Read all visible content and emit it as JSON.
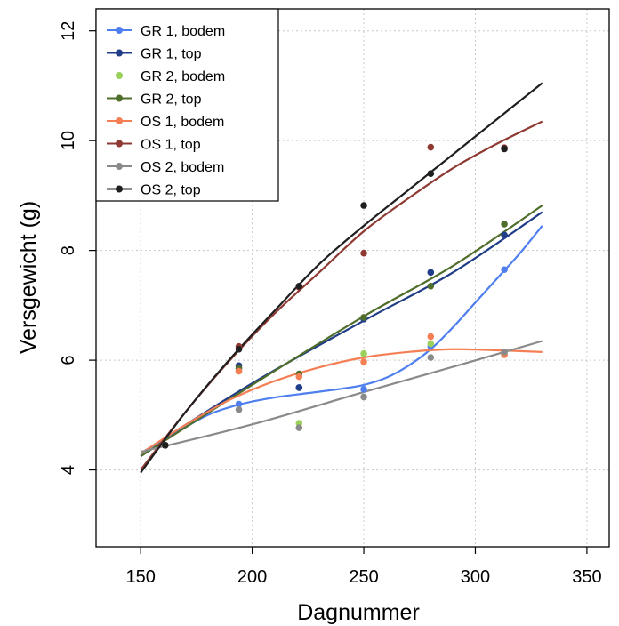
{
  "chart_data": {
    "type": "scatter",
    "xlabel": "Dagnummer",
    "ylabel": "Versgewicht (g)",
    "xlim": [
      130,
      360
    ],
    "ylim": [
      2.6,
      12.4
    ],
    "xticks": [
      150,
      200,
      250,
      300,
      350
    ],
    "yticks": [
      4,
      6,
      8,
      10,
      12
    ],
    "grid": true,
    "legend_position": "top-left",
    "series": [
      {
        "name": "GR 1, bodem",
        "color": "#4f7fef",
        "points": [
          [
            161,
            4.45
          ],
          [
            194,
            5.2
          ],
          [
            221,
            5.5
          ],
          [
            250,
            5.47
          ],
          [
            280,
            6.25
          ],
          [
            313,
            7.65
          ]
        ],
        "fit": [
          [
            150,
            4.25
          ],
          [
            165,
            4.65
          ],
          [
            180,
            5.0
          ],
          [
            195,
            5.2
          ],
          [
            210,
            5.32
          ],
          [
            225,
            5.4
          ],
          [
            240,
            5.48
          ],
          [
            250,
            5.55
          ],
          [
            260,
            5.68
          ],
          [
            270,
            5.9
          ],
          [
            280,
            6.2
          ],
          [
            290,
            6.6
          ],
          [
            300,
            7.05
          ],
          [
            310,
            7.5
          ],
          [
            320,
            7.95
          ],
          [
            330,
            8.45
          ]
        ]
      },
      {
        "name": "GR 1, top",
        "color": "#203d87",
        "points": [
          [
            161,
            4.45
          ],
          [
            194,
            5.9
          ],
          [
            221,
            5.5
          ],
          [
            250,
            6.75
          ],
          [
            280,
            7.6
          ],
          [
            313,
            8.28
          ]
        ],
        "fit": [
          [
            150,
            4.3
          ],
          [
            200,
            5.58
          ],
          [
            250,
            6.72
          ],
          [
            290,
            7.6
          ],
          [
            330,
            8.7
          ]
        ]
      },
      {
        "name": "GR 2, bodem",
        "color": "#9ad15b",
        "points": [
          [
            161,
            4.45
          ],
          [
            194,
            5.8
          ],
          [
            221,
            4.85
          ],
          [
            250,
            6.12
          ],
          [
            280,
            6.3
          ],
          [
            313,
            6.1
          ]
        ],
        "fit": []
      },
      {
        "name": "GR 2, top",
        "color": "#4f6d2b",
        "points": [
          [
            161,
            4.45
          ],
          [
            194,
            5.85
          ],
          [
            221,
            5.75
          ],
          [
            250,
            6.78
          ],
          [
            280,
            7.35
          ],
          [
            313,
            8.48
          ]
        ],
        "fit": [
          [
            150,
            4.25
          ],
          [
            200,
            5.55
          ],
          [
            250,
            6.8
          ],
          [
            290,
            7.72
          ],
          [
            330,
            8.82
          ]
        ]
      },
      {
        "name": "OS 1, bodem",
        "color": "#f47f55",
        "points": [
          [
            161,
            4.45
          ],
          [
            194,
            5.8
          ],
          [
            221,
            5.7
          ],
          [
            250,
            5.97
          ],
          [
            280,
            6.43
          ],
          [
            313,
            6.1
          ]
        ],
        "fit": [
          [
            150,
            4.3
          ],
          [
            170,
            4.82
          ],
          [
            190,
            5.28
          ],
          [
            210,
            5.62
          ],
          [
            230,
            5.87
          ],
          [
            250,
            6.05
          ],
          [
            270,
            6.15
          ],
          [
            290,
            6.2
          ],
          [
            310,
            6.18
          ],
          [
            330,
            6.15
          ]
        ]
      },
      {
        "name": "OS 1, top",
        "color": "#8e3a33",
        "points": [
          [
            161,
            4.45
          ],
          [
            194,
            6.25
          ],
          [
            221,
            7.33
          ],
          [
            250,
            7.95
          ],
          [
            280,
            9.88
          ],
          [
            313,
            9.87
          ]
        ],
        "fit": [
          [
            150,
            4.0
          ],
          [
            170,
            5.05
          ],
          [
            190,
            6.0
          ],
          [
            210,
            6.85
          ],
          [
            230,
            7.6
          ],
          [
            250,
            8.35
          ],
          [
            270,
            8.95
          ],
          [
            290,
            9.5
          ],
          [
            310,
            9.95
          ],
          [
            330,
            10.35
          ]
        ]
      },
      {
        "name": "OS 2, bodem",
        "color": "#8a8a8a",
        "points": [
          [
            161,
            4.45
          ],
          [
            194,
            5.1
          ],
          [
            221,
            4.77
          ],
          [
            250,
            5.33
          ],
          [
            280,
            6.05
          ],
          [
            313,
            6.15
          ]
        ],
        "fit": [
          [
            150,
            4.33
          ],
          [
            200,
            4.83
          ],
          [
            250,
            5.42
          ],
          [
            290,
            5.88
          ],
          [
            330,
            6.35
          ]
        ]
      },
      {
        "name": "OS 2, top",
        "color": "#1f1f1f",
        "points": [
          [
            161,
            4.45
          ],
          [
            194,
            6.2
          ],
          [
            221,
            7.35
          ],
          [
            250,
            8.82
          ],
          [
            280,
            9.4
          ],
          [
            313,
            9.85
          ]
        ],
        "fit": [
          [
            150,
            3.95
          ],
          [
            170,
            5.05
          ],
          [
            190,
            6.02
          ],
          [
            210,
            6.9
          ],
          [
            230,
            7.75
          ],
          [
            250,
            8.45
          ],
          [
            270,
            9.1
          ],
          [
            290,
            9.75
          ],
          [
            310,
            10.4
          ],
          [
            330,
            11.05
          ]
        ]
      }
    ]
  }
}
